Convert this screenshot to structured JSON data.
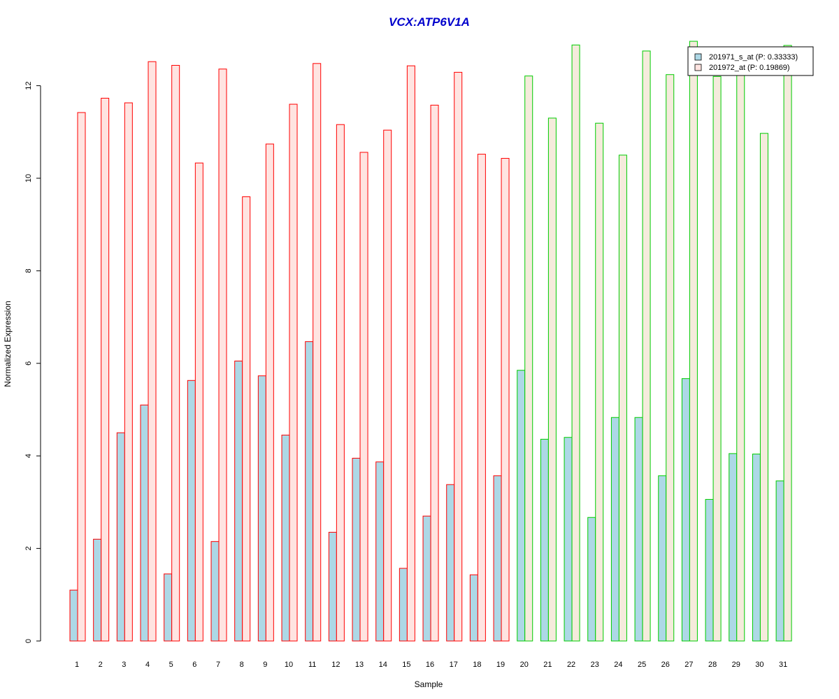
{
  "chart_data": {
    "type": "bar",
    "title": "VCX:ATP6V1A",
    "xlabel": "Sample",
    "ylabel": "Normalized Expression",
    "ylim": [
      0,
      13
    ],
    "yticks": [
      "0",
      "2",
      "4",
      "6",
      "8",
      "10",
      "12"
    ],
    "categories": [
      "1",
      "2",
      "3",
      "4",
      "5",
      "6",
      "7",
      "8",
      "9",
      "10",
      "11",
      "12",
      "13",
      "14",
      "15",
      "16",
      "17",
      "18",
      "19",
      "20",
      "21",
      "22",
      "23",
      "24",
      "25",
      "26",
      "27",
      "28",
      "29",
      "30",
      "31"
    ],
    "groups": [
      {
        "from": 1,
        "to": 19,
        "border_color": "#ff0000"
      },
      {
        "from": 20,
        "to": 31,
        "border_color": "#00cc00"
      }
    ],
    "series": [
      {
        "name": "201971_s_at (P: 0.33333)",
        "fill": "#add8e6",
        "values": [
          1.1,
          2.2,
          4.5,
          5.1,
          1.45,
          5.63,
          2.15,
          6.05,
          5.73,
          4.45,
          6.47,
          2.35,
          3.95,
          3.87,
          1.57,
          2.7,
          3.38,
          1.43,
          3.57,
          5.85,
          4.36,
          4.4,
          2.67,
          4.83,
          4.83,
          3.57,
          5.67,
          3.06,
          4.05,
          4.04,
          3.46
        ]
      },
      {
        "name": "201972_at (P: 0.19869)",
        "fill_group1": "#ffe4e1",
        "fill_group2": "#f5ebdc",
        "values": [
          11.42,
          11.73,
          11.63,
          12.52,
          12.44,
          10.33,
          12.36,
          9.6,
          10.74,
          11.6,
          12.48,
          11.16,
          10.56,
          11.04,
          12.43,
          11.58,
          12.29,
          10.52,
          10.43,
          12.21,
          11.3,
          12.88,
          11.19,
          10.5,
          12.75,
          12.24,
          12.96,
          12.2,
          12.3,
          10.97,
          12.87
        ]
      }
    ],
    "legend": {
      "position": "top-right"
    },
    "colors": {
      "title": "#0000cc",
      "axis": "#000000"
    }
  }
}
